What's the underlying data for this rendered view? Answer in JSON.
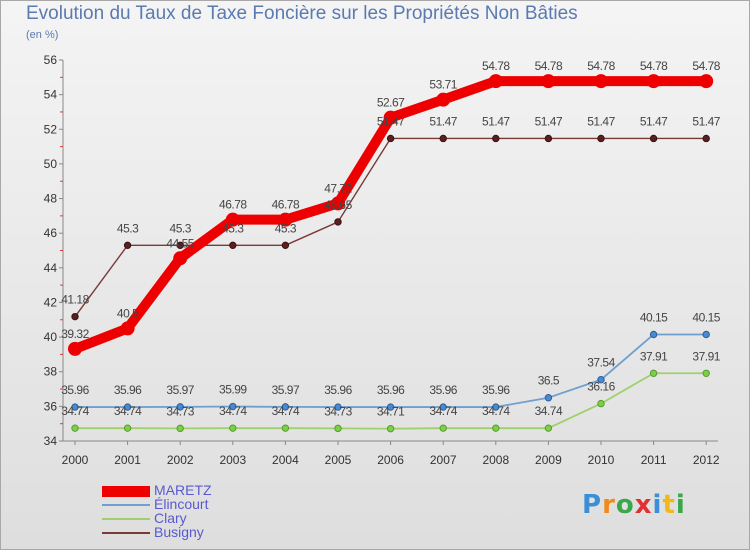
{
  "chart_data": {
    "type": "line",
    "title": "Evolution du Taux de Taxe Foncière sur les Propriétés Non Bâties",
    "ylabel": "(en %)",
    "xlabel": "",
    "categories": [
      "2000",
      "2001",
      "2002",
      "2003",
      "2004",
      "2005",
      "2006",
      "2007",
      "2008",
      "2009",
      "2010",
      "2011",
      "2012"
    ],
    "ylim": [
      34,
      56
    ],
    "yticks": [
      34,
      36,
      38,
      40,
      42,
      44,
      46,
      48,
      50,
      52,
      54,
      56
    ],
    "grid": false,
    "legend_position": "bottom-left",
    "series": [
      {
        "name": "MARETZ",
        "color": "#ee0000",
        "values": [
          39.32,
          40.5,
          44.55,
          46.78,
          46.78,
          47.72,
          52.67,
          53.71,
          54.78,
          54.78,
          54.78,
          54.78,
          54.78
        ],
        "labels": [
          "39.32",
          "40.5",
          "44.55",
          "46.78",
          "46.78",
          "47.72",
          "52.67",
          "53.71",
          "54.78",
          "54.78",
          "54.78",
          "54.78",
          "54.78"
        ]
      },
      {
        "name": "Élincourt",
        "color": "#6e9fcf",
        "values": [
          35.96,
          35.96,
          35.97,
          35.99,
          35.97,
          35.96,
          35.96,
          35.96,
          35.96,
          36.5,
          37.54,
          40.15,
          40.15
        ],
        "labels": [
          "35.96",
          "35.96",
          "35.97",
          "35.99",
          "35.97",
          "35.96",
          "35.96",
          "35.96",
          "35.96",
          "36.5",
          "37.54",
          "40.15",
          "40.15"
        ]
      },
      {
        "name": "Clary",
        "color": "#9ed06e",
        "values": [
          34.74,
          34.74,
          34.73,
          34.74,
          34.74,
          34.73,
          34.71,
          34.74,
          34.74,
          34.74,
          36.16,
          37.91,
          37.91
        ],
        "labels": [
          "34.74",
          "34.74",
          "34.73",
          "34.74",
          "34.74",
          "34.73",
          "34.71",
          "34.74",
          "34.74",
          "34.74",
          "36.16",
          "37.91",
          "37.91"
        ]
      },
      {
        "name": "Busigny",
        "color": "#7a3a3a",
        "values": [
          41.18,
          45.3,
          45.3,
          45.3,
          45.3,
          46.65,
          51.47,
          51.47,
          51.47,
          51.47,
          51.47,
          51.47,
          51.47
        ],
        "labels": [
          "41.18",
          "45.3",
          "45.3",
          "45.3",
          "45.3",
          "46.65",
          "51.47",
          "51.47",
          "51.47",
          "51.47",
          "51.47",
          "51.47",
          "51.47"
        ]
      }
    ]
  },
  "brand": {
    "text": "Proxiti",
    "colors": [
      "#3a8fd8",
      "#f08a1a",
      "#3aa84a",
      "#e03030",
      "#3a8fd8",
      "#f0b81a",
      "#3aa84a"
    ]
  }
}
